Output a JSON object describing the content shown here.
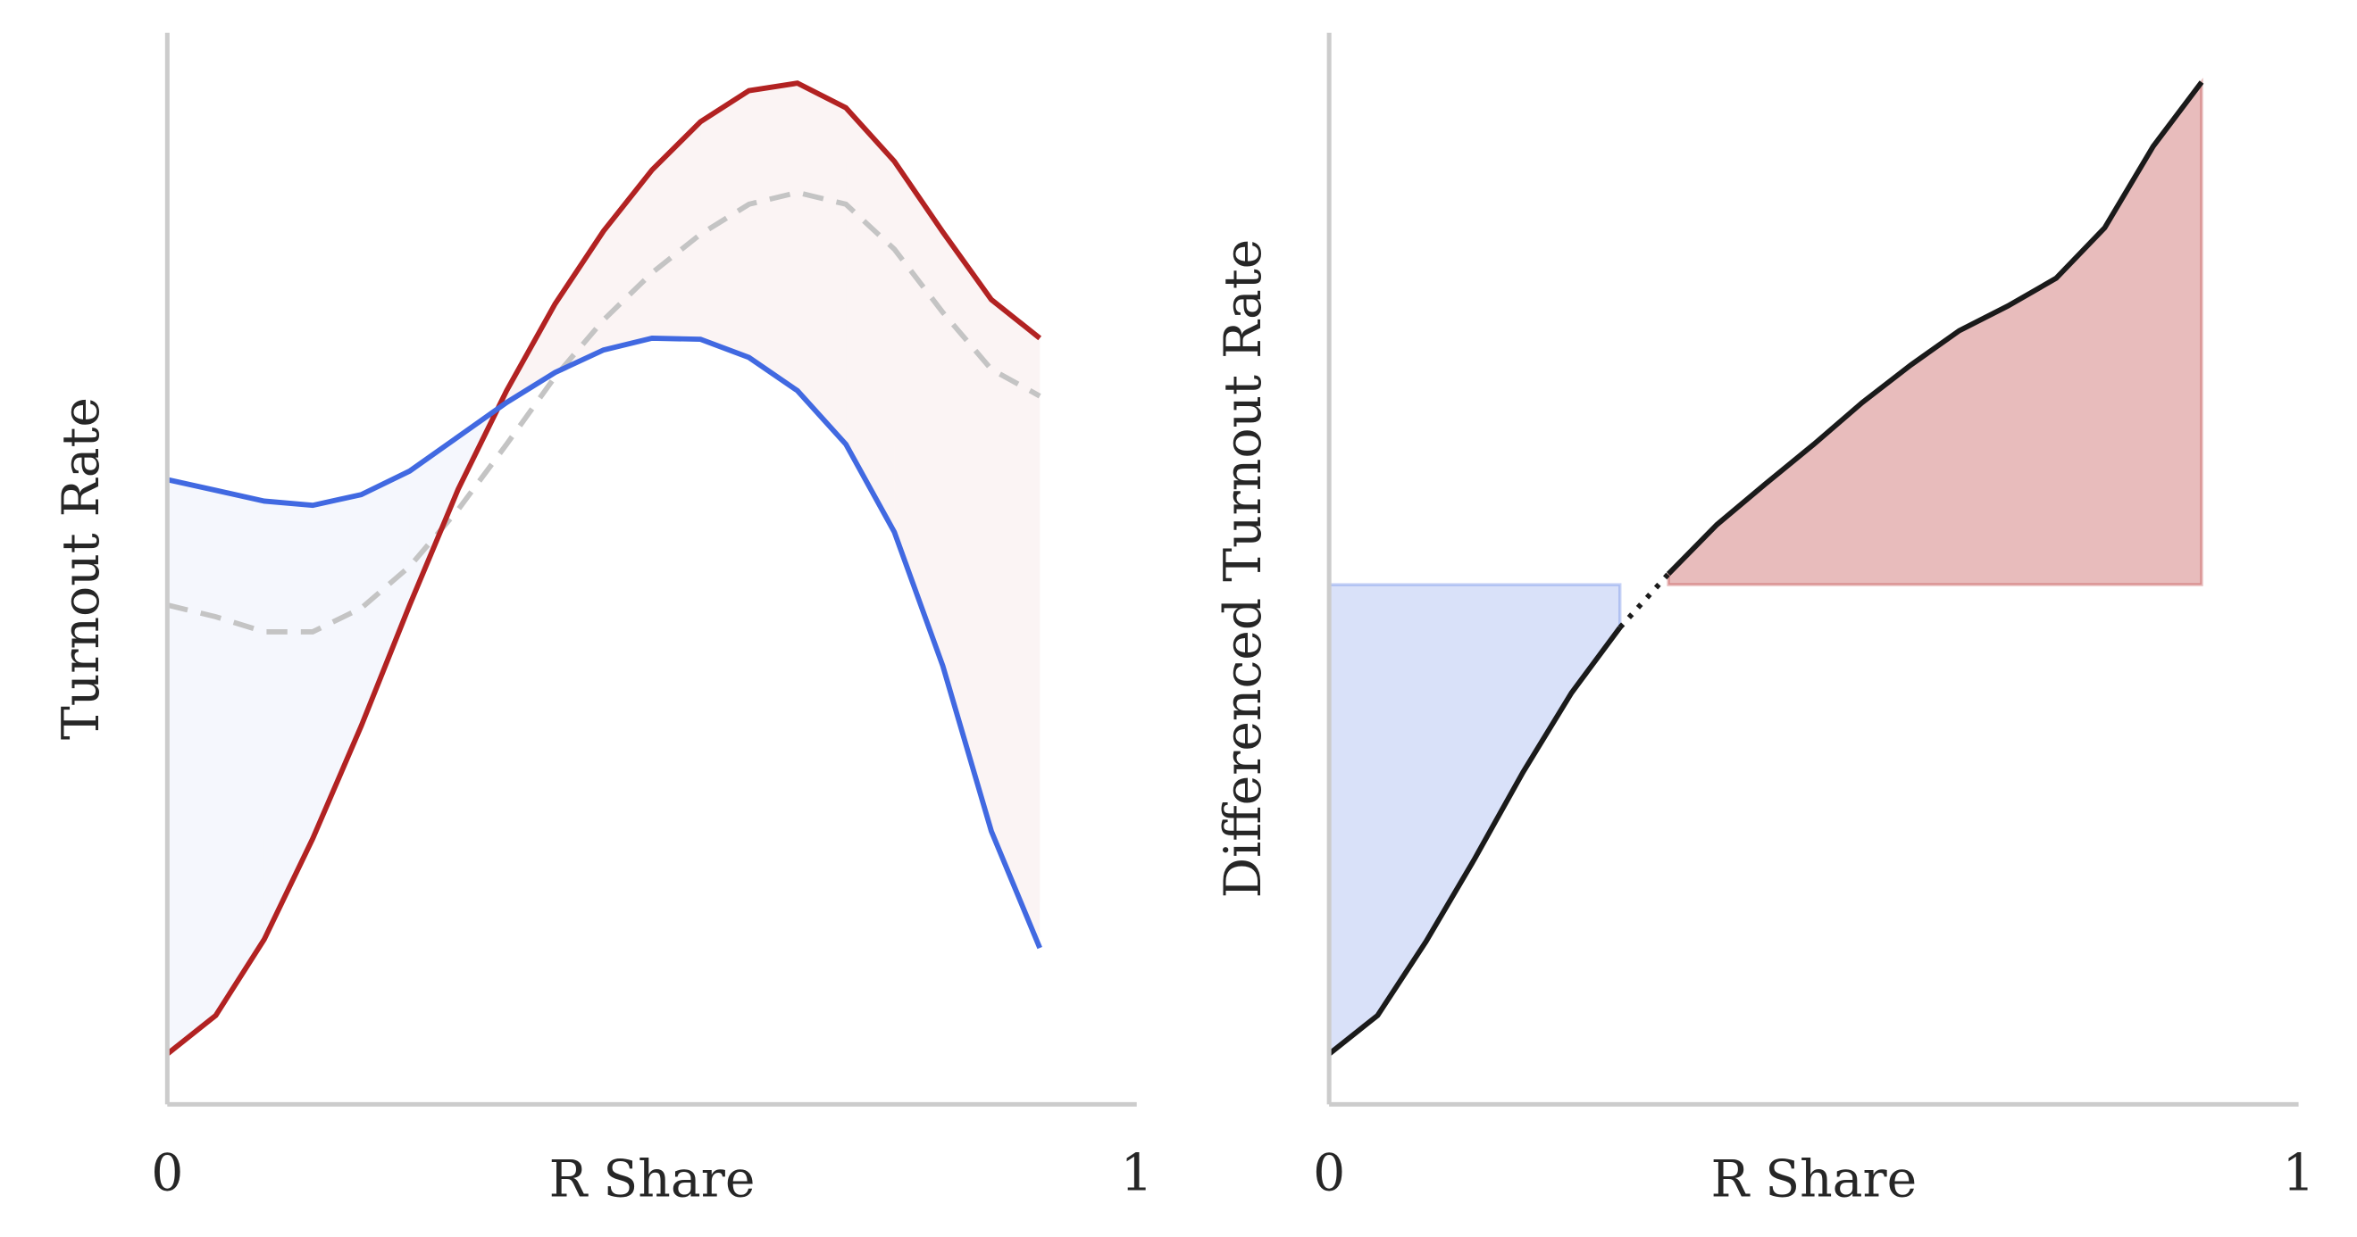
{
  "chart_data": [
    {
      "type": "line",
      "xlabel": "R Share",
      "ylabel": "Turnout Rate",
      "x": [
        0,
        0.05,
        0.1,
        0.15,
        0.2,
        0.25,
        0.3,
        0.35,
        0.4,
        0.45,
        0.5,
        0.55,
        0.6,
        0.65,
        0.7,
        0.75,
        0.8,
        0.85,
        0.9
      ],
      "xlim": [
        0,
        1
      ],
      "xticks": [
        0,
        1
      ],
      "ylim": [
        0,
        1
      ],
      "fill_between": true,
      "fill_opacity": 0.05,
      "series": [
        {
          "color": "#4169e1",
          "values": [
            0.583,
            0.573,
            0.563,
            0.559,
            0.569,
            0.591,
            0.623,
            0.655,
            0.683,
            0.704,
            0.715,
            0.714,
            0.697,
            0.666,
            0.616,
            0.534,
            0.409,
            0.255,
            0.146
          ]
        },
        {
          "color": "#b22222",
          "values": [
            0.047,
            0.083,
            0.154,
            0.248,
            0.353,
            0.466,
            0.574,
            0.666,
            0.747,
            0.815,
            0.872,
            0.917,
            0.946,
            0.953,
            0.93,
            0.88,
            0.814,
            0.751,
            0.715
          ]
        },
        {
          "color": "#c4c4c4",
          "dashed": true,
          "values": [
            0.466,
            0.455,
            0.441,
            0.441,
            0.463,
            0.502,
            0.555,
            0.616,
            0.679,
            0.732,
            0.776,
            0.812,
            0.84,
            0.851,
            0.84,
            0.798,
            0.739,
            0.686,
            0.661
          ]
        }
      ]
    },
    {
      "type": "area",
      "xlabel": "R Share",
      "ylabel": "Differenced Turnout Rate",
      "x": [
        0,
        0.05,
        0.1,
        0.15,
        0.2,
        0.25,
        0.3,
        0.35,
        0.4,
        0.45,
        0.5,
        0.55,
        0.6,
        0.65,
        0.7,
        0.75,
        0.8,
        0.85,
        0.9
      ],
      "xlim": [
        0,
        1
      ],
      "xticks": [
        0,
        1
      ],
      "ylim": [
        0,
        1
      ],
      "baseline": 0.485,
      "color": "#1a1a1a",
      "below_color": "#4169e1",
      "above_color": "#b22222",
      "values": [
        0.047,
        0.083,
        0.152,
        0.229,
        0.31,
        0.384,
        0.445,
        0.495,
        0.541,
        0.579,
        0.616,
        0.655,
        0.69,
        0.722,
        0.745,
        0.771,
        0.818,
        0.894,
        0.954
      ]
    }
  ]
}
